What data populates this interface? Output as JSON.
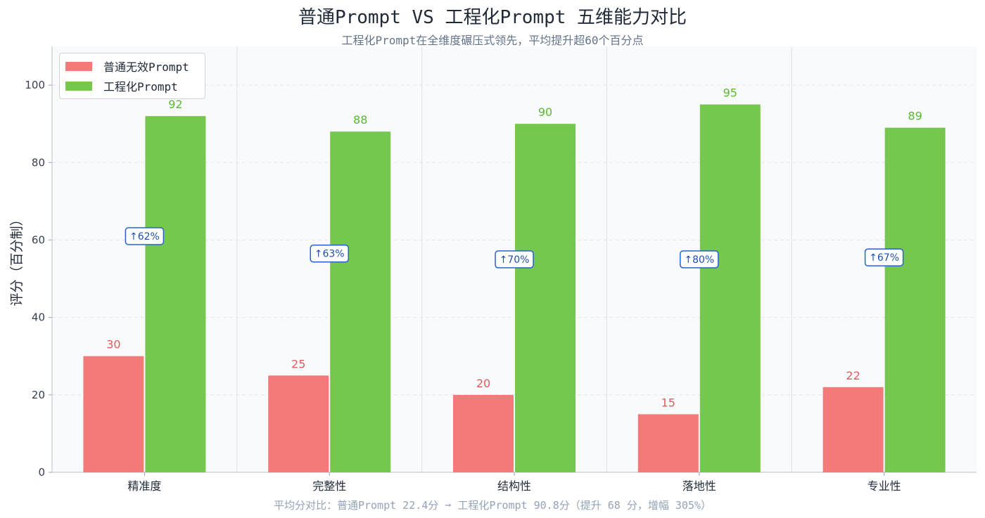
{
  "title": "普通Prompt VS 工程化Prompt 五维能力对比",
  "subtitle": "工程化Prompt在全维度碾压式领先，平均提升超60个百分点",
  "footnote": "平均分对比：普通Prompt 22.4分 ➞ 工程化Prompt 90.8分（提升 68 分，增幅 305%）",
  "chart_data": {
    "type": "bar",
    "title": "普通Prompt VS 工程化Prompt 五维能力对比",
    "subtitle": "工程化Prompt在全维度碾压式领先，平均提升超60个百分点",
    "xlabel": "",
    "ylabel": "评分（百分制）",
    "ylim": [
      0,
      110
    ],
    "yticks": [
      0,
      20,
      40,
      60,
      80,
      100
    ],
    "grid": true,
    "legend_position": "top-left",
    "categories": [
      "精准度",
      "完整性",
      "结构性",
      "落地性",
      "专业性"
    ],
    "series": [
      {
        "name": "普通无效Prompt",
        "color": "#f47a7a",
        "label_color": "#e05c5c",
        "values": [
          30,
          25,
          20,
          15,
          22
        ]
      },
      {
        "name": "工程化Prompt",
        "color": "#76c74e",
        "label_color": "#5ab832",
        "values": [
          92,
          88,
          90,
          95,
          89
        ]
      }
    ],
    "annotations": [
      "↑62%",
      "↑63%",
      "↑70%",
      "↑80%",
      "↑67%"
    ]
  }
}
